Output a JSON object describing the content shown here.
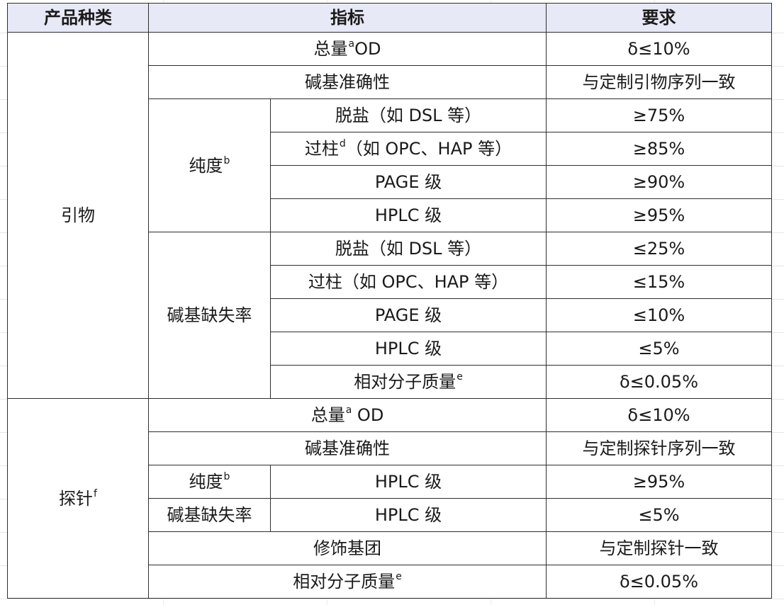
{
  "headers": {
    "category": "产品种类",
    "indicator": "指标",
    "requirement": "要求"
  },
  "primer": {
    "category": "引物",
    "total_od": {
      "label_pre": "总量",
      "sup": "a",
      "label_post": "OD",
      "value": "δ≤10%"
    },
    "base_accuracy": {
      "label": "碱基准确性",
      "value": "与定制引物序列一致"
    },
    "purity": {
      "label": "纯度",
      "sup": "b",
      "rows": [
        {
          "pre": "脱盐（如 DSL 等）",
          "sup": "",
          "post": "",
          "value": "≥75%"
        },
        {
          "pre": "过柱",
          "sup": "d",
          "post": "（如 OPC、HAP 等）",
          "value": "≥85%"
        },
        {
          "pre": "PAGE 级",
          "sup": "",
          "post": "",
          "value": "≥90%"
        },
        {
          "pre": "HPLC 级",
          "sup": "",
          "post": "",
          "value": "≥95%"
        }
      ]
    },
    "base_deletion": {
      "label": "碱基缺失率",
      "rows": [
        {
          "label": "脱盐（如 DSL 等）",
          "value": "≤25%"
        },
        {
          "label": "过柱（如 OPC、HAP 等）",
          "value": "≤15%"
        },
        {
          "label": "PAGE 级",
          "value": "≤10%"
        },
        {
          "label": "HPLC 级",
          "value": "≤5%"
        }
      ]
    },
    "mol_mass": {
      "label": "相对分子质量",
      "sup": "e",
      "value": "δ≤0.05%"
    }
  },
  "probe": {
    "category": "探针",
    "category_sup": "f",
    "total_od": {
      "label_pre": "总量",
      "sup": "a",
      "label_post": " OD",
      "value": "δ≤10%"
    },
    "base_accuracy": {
      "label": "碱基准确性",
      "value": "与定制探针序列一致"
    },
    "purity": {
      "label": "纯度",
      "sup": "b",
      "sub": "HPLC 级",
      "value": "≥95%"
    },
    "base_deletion": {
      "label": "碱基缺失率",
      "sub": "HPLC 级",
      "value": "≤5%"
    },
    "modification": {
      "label": "修饰基团",
      "value": "与定制探针一致"
    },
    "mol_mass": {
      "label": "相对分子质量",
      "sup": "e",
      "value": "δ≤0.05%"
    }
  }
}
